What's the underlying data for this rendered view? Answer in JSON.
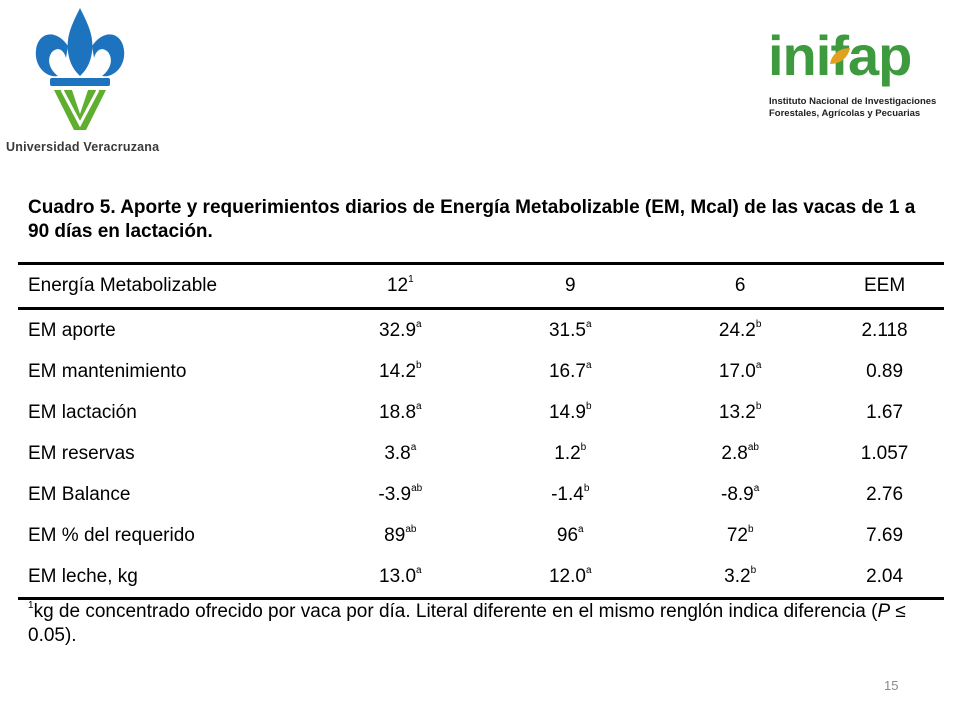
{
  "logos": {
    "left": {
      "name": "Universidad Veracruzana",
      "colors": {
        "blue": "#1e73be",
        "green": "#5fae2e"
      }
    },
    "right": {
      "wordmark": "inifap",
      "subtitle_line1": "Instituto Nacional de Investigaciones",
      "subtitle_line2": "Forestales, Agrícolas y Pecuarias",
      "colors": {
        "green": "#3e9a3e",
        "leaf": "#e0a020"
      }
    }
  },
  "caption": "Cuadro 5. Aporte y requerimientos diarios de Energía Metabolizable (EM, Mcal) de las vacas de 1 a 90 días en lactación.",
  "table": {
    "headers": [
      {
        "text": "Energía Metabolizable",
        "sup": ""
      },
      {
        "text": "12",
        "sup": "1"
      },
      {
        "text": "9",
        "sup": ""
      },
      {
        "text": "6",
        "sup": ""
      },
      {
        "text": "EEM",
        "sup": ""
      }
    ],
    "rows": [
      {
        "label": "EM aporte",
        "cells": [
          {
            "v": "32.9",
            "s": "a"
          },
          {
            "v": "31.5",
            "s": "a"
          },
          {
            "v": "24.2",
            "s": "b"
          },
          {
            "v": "2.118",
            "s": ""
          }
        ]
      },
      {
        "label": "EM mantenimiento",
        "cells": [
          {
            "v": "14.2",
            "s": "b"
          },
          {
            "v": "16.7",
            "s": "a"
          },
          {
            "v": "17.0",
            "s": "a"
          },
          {
            "v": "0.89",
            "s": ""
          }
        ]
      },
      {
        "label": "EM lactación",
        "cells": [
          {
            "v": "18.8",
            "s": "a"
          },
          {
            "v": "14.9",
            "s": "b"
          },
          {
            "v": "13.2",
            "s": "b"
          },
          {
            "v": "1.67",
            "s": ""
          }
        ]
      },
      {
        "label": "EM reservas",
        "cells": [
          {
            "v": "3.8",
            "s": "a"
          },
          {
            "v": "1.2",
            "s": "b"
          },
          {
            "v": "2.8",
            "s": "ab"
          },
          {
            "v": "1.057",
            "s": ""
          }
        ]
      },
      {
        "label": "EM Balance",
        "cells": [
          {
            "v": "-3.9",
            "s": "ab"
          },
          {
            "v": "-1.4",
            "s": "b"
          },
          {
            "v": "-8.9",
            "s": "a"
          },
          {
            "v": "2.76",
            "s": ""
          }
        ]
      },
      {
        "label": "EM % del requerido",
        "cells": [
          {
            "v": "89",
            "s": "ab"
          },
          {
            "v": "96",
            "s": "a"
          },
          {
            "v": "72",
            "s": "b"
          },
          {
            "v": "7.69",
            "s": ""
          }
        ]
      },
      {
        "label": "EM leche, kg",
        "cells": [
          {
            "v": "13.0",
            "s": "a"
          },
          {
            "v": "12.0",
            "s": "a"
          },
          {
            "v": "3.2",
            "s": "b"
          },
          {
            "v": "2.04",
            "s": ""
          }
        ]
      }
    ]
  },
  "footnote": {
    "marker": "1",
    "text": "kg de concentrado ofrecido por vaca por día. Literal diferente en el mismo renglón indica diferencia (",
    "p_symbol": "P",
    "p_rest": " ≤ 0.05)."
  },
  "page_number": "15"
}
